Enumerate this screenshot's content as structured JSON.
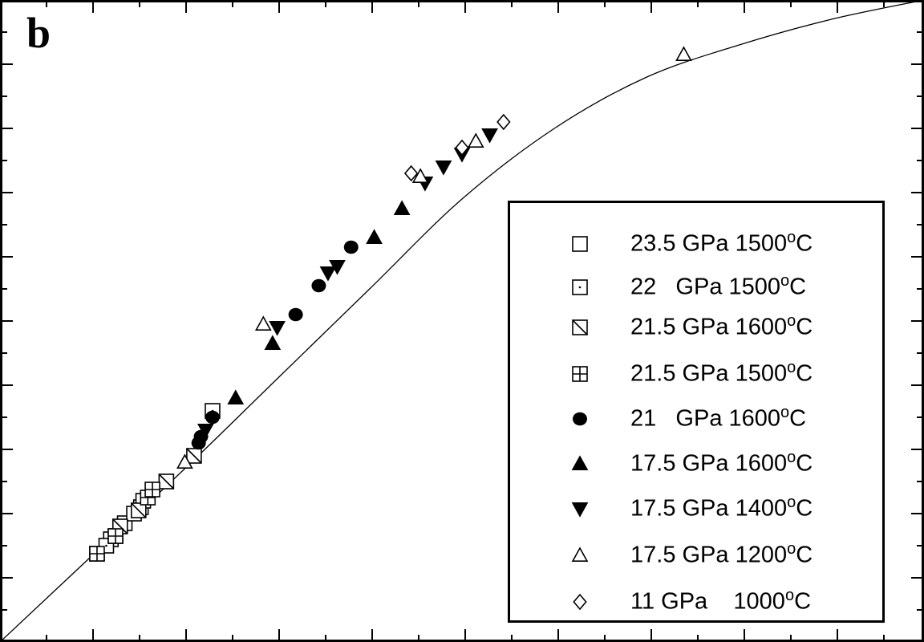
{
  "panel_label": "b",
  "chart_data": {
    "type": "scatter",
    "title": "",
    "xlabel": "",
    "ylabel": "",
    "xlim": [
      0,
      20
    ],
    "ylim": [
      0,
      20
    ],
    "grid": false,
    "legend_placement": "lower-right",
    "fit_curve": {
      "name": "",
      "x": [
        0,
        2,
        4,
        6,
        8,
        10,
        12,
        14,
        16,
        18,
        20
      ],
      "y": [
        0,
        2.7,
        5.4,
        8.2,
        11.0,
        13.8,
        16.0,
        17.6,
        18.6,
        19.4,
        20.0
      ]
    },
    "series": [
      {
        "name": "23.5 GPa 1500",
        "temp_unit": "°C",
        "marker": "open-square",
        "x": [
          2.1,
          2.4,
          3.05
        ],
        "y": [
          2.75,
          3.2,
          4.2
        ]
      },
      {
        "name": "22   GPa 1500",
        "temp_unit": "°C",
        "marker": "dot-square",
        "x": [
          2.3,
          2.5,
          2.7,
          2.9,
          3.1,
          4.6
        ],
        "y": [
          3.0,
          3.3,
          3.7,
          4.0,
          4.4,
          7.2
        ]
      },
      {
        "name": "21.5 GPa 1600",
        "temp_unit": "°C",
        "marker": "slash-square",
        "x": [
          2.6,
          3.0,
          3.6,
          4.2
        ],
        "y": [
          3.6,
          4.1,
          5.0,
          5.8
        ]
      },
      {
        "name": "21.5 GPa 1500",
        "temp_unit": "°C",
        "marker": "cross-square",
        "x": [
          2.1,
          2.5,
          3.2,
          3.3
        ],
        "y": [
          2.75,
          3.3,
          4.5,
          4.75
        ]
      },
      {
        "name": "21   GPa 1600",
        "temp_unit": "°C",
        "marker": "filled-circle",
        "x": [
          4.3,
          4.35,
          4.6,
          6.4,
          6.9,
          7.6
        ],
        "y": [
          6.2,
          6.4,
          7.0,
          10.2,
          11.1,
          12.3
        ]
      },
      {
        "name": "17.5 GPa 1600",
        "temp_unit": "°C",
        "marker": "filled-triangle-up",
        "x": [
          5.1,
          5.9,
          8.1,
          8.7
        ],
        "y": [
          7.6,
          9.3,
          12.6,
          13.5
        ]
      },
      {
        "name": "17.5 GPa 1400",
        "temp_unit": "°C",
        "marker": "filled-triangle-down",
        "x": [
          4.45,
          6.0,
          7.1,
          7.3,
          9.2,
          9.6,
          10.0,
          10.6
        ],
        "y": [
          6.6,
          9.8,
          11.5,
          11.7,
          14.3,
          14.8,
          15.2,
          15.8
        ]
      },
      {
        "name": "17.5 GPa 1200",
        "temp_unit": "°C",
        "marker": "open-triangle-up",
        "x": [
          4.0,
          5.7,
          9.1,
          10.3,
          14.8
        ],
        "y": [
          5.6,
          9.9,
          14.5,
          15.6,
          18.3
        ]
      },
      {
        "name": "11 GPa    1000",
        "temp_unit": "°C",
        "marker": "open-diamond",
        "x": [
          8.9,
          10.0,
          10.9
        ],
        "y": [
          14.6,
          15.4,
          16.2
        ]
      }
    ]
  }
}
